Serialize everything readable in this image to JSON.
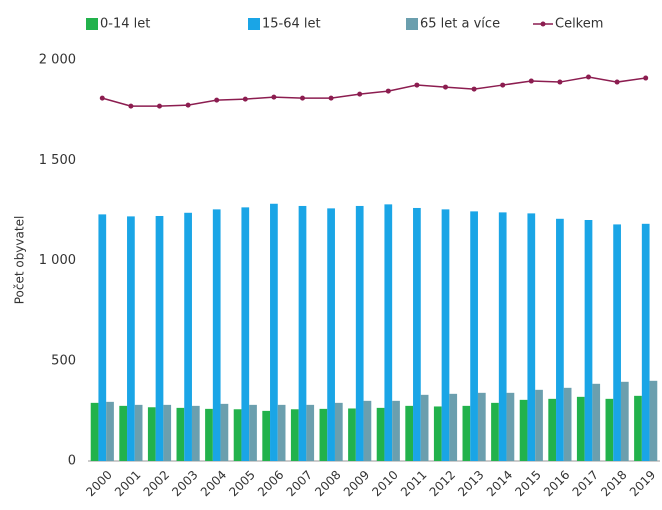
{
  "chart_data": {
    "type": "bar",
    "y_label": "Počet obyvatel",
    "categories": [
      "2000",
      "2001",
      "2002",
      "2003",
      "2004",
      "2005",
      "2006",
      "2007",
      "2008",
      "2009",
      "2010",
      "2011",
      "2012",
      "2013",
      "2014",
      "2015",
      "2016",
      "2017",
      "2018",
      "2019"
    ],
    "series": [
      {
        "name": "0-14 let",
        "color": "#22b24c",
        "values": [
          290,
          275,
          268,
          265,
          260,
          258,
          250,
          258,
          260,
          262,
          265,
          275,
          272,
          275,
          290,
          305,
          310,
          320,
          310,
          325
        ]
      },
      {
        "name": "15-64 let",
        "color": "#1aa5e6",
        "values": [
          1230,
          1220,
          1222,
          1238,
          1255,
          1265,
          1283,
          1272,
          1260,
          1272,
          1280,
          1262,
          1255,
          1245,
          1240,
          1235,
          1208,
          1202,
          1180,
          1183
        ]
      },
      {
        "name": "65 let a více",
        "color": "#6b9fae",
        "values": [
          295,
          280,
          280,
          275,
          285,
          280,
          280,
          280,
          290,
          300,
          300,
          330,
          335,
          340,
          340,
          355,
          365,
          385,
          395,
          400
        ]
      },
      {
        "name": "Celkem",
        "type": "line",
        "color": "#8c1d50",
        "values": [
          1810,
          1770,
          1770,
          1775,
          1800,
          1805,
          1815,
          1810,
          1810,
          1830,
          1845,
          1875,
          1865,
          1855,
          1875,
          1895,
          1890,
          1915,
          1890,
          1910
        ]
      }
    ],
    "ylim": [
      0,
      2000
    ],
    "yticks": [
      0,
      500,
      {
        "value": 1000,
        "label": "1 000"
      },
      {
        "value": 1500,
        "label": "1 500"
      },
      {
        "value": 2000,
        "label": "2 000"
      }
    ],
    "legend": "top"
  }
}
